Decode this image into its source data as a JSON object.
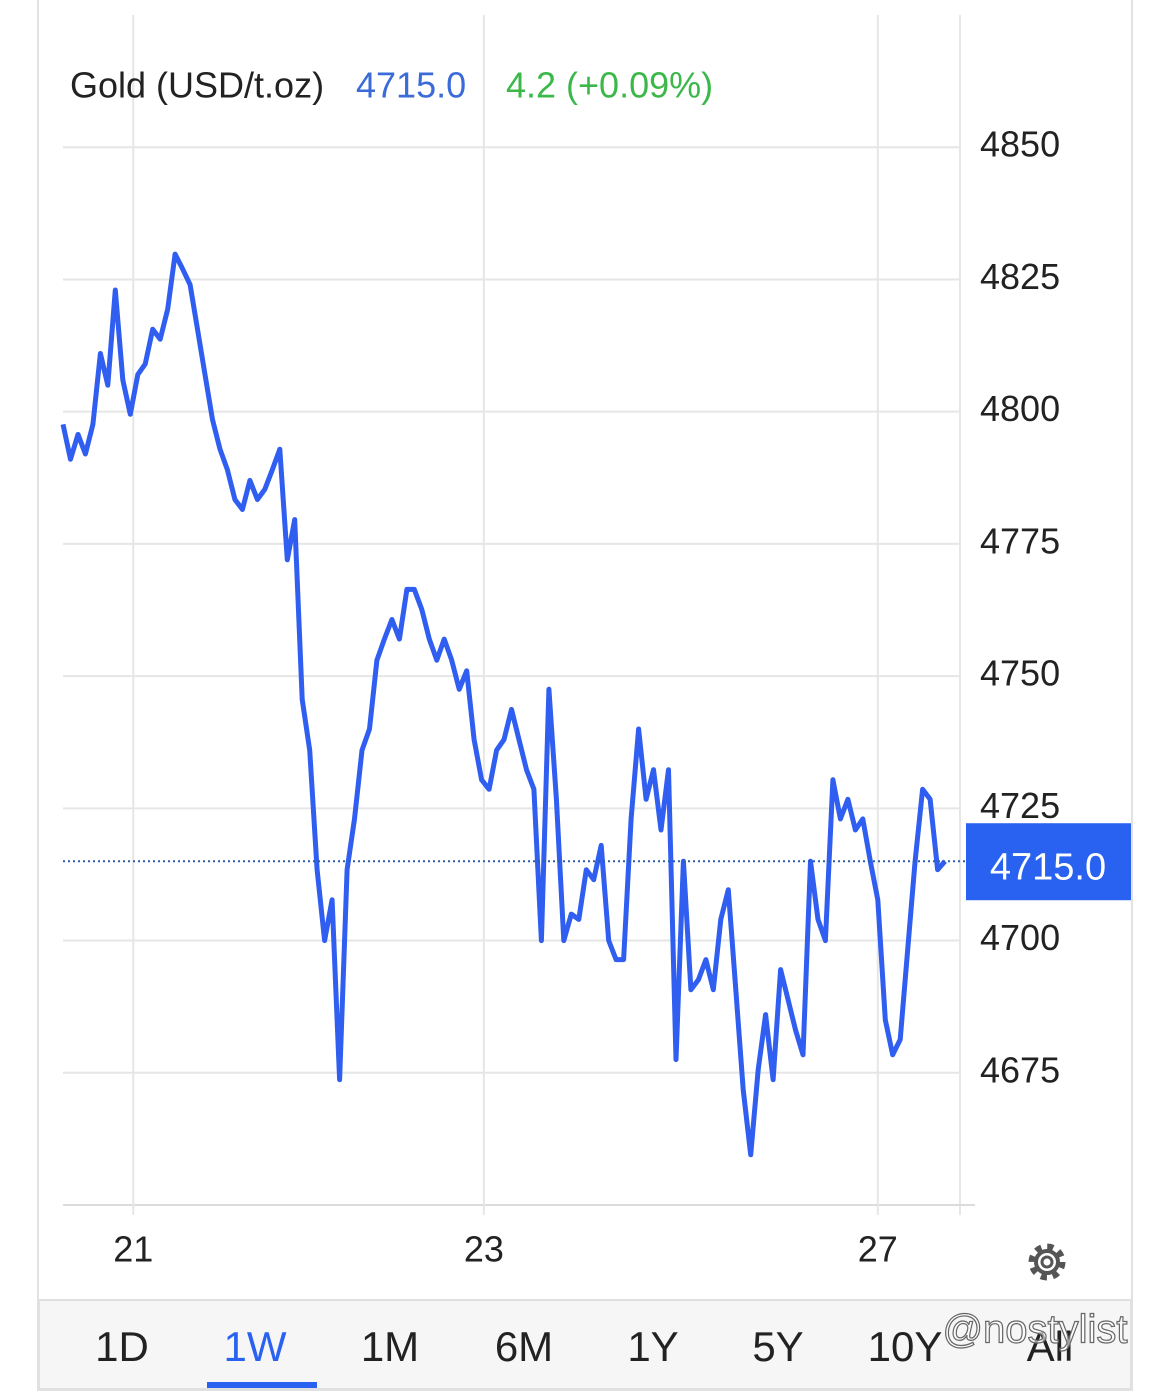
{
  "header": {
    "name": "Gold (USD/t.oz)",
    "price": {
      "value": 4715.0,
      "label": "4715.0"
    },
    "change": "4.2 (+0.09%)"
  },
  "chart_data": {
    "type": "line",
    "x": [
      0,
      1,
      2,
      3,
      4,
      5,
      6,
      7,
      8,
      9,
      10,
      11,
      12,
      13,
      14,
      15,
      16,
      17,
      18,
      19,
      20,
      21,
      22,
      23,
      24,
      25,
      26,
      27,
      28,
      29,
      30,
      31,
      32,
      33,
      34,
      35,
      36,
      37,
      38,
      39,
      40,
      41,
      42,
      43,
      44,
      45,
      46,
      47,
      48,
      49,
      50,
      51,
      52,
      53,
      54,
      55,
      56,
      57,
      58,
      59,
      60,
      61,
      62,
      63,
      64,
      65,
      66,
      67,
      68,
      69,
      70,
      71,
      72,
      73,
      74,
      75,
      76,
      77,
      78,
      79,
      80,
      81,
      82,
      83,
      84,
      85,
      86,
      87,
      88,
      89,
      90,
      91,
      92,
      93,
      94,
      95,
      96,
      97,
      98,
      99,
      100,
      101,
      102,
      103,
      104,
      105,
      106,
      107,
      108,
      109,
      110,
      111,
      112,
      113,
      114,
      115,
      116,
      117,
      118
    ],
    "series": [
      {
        "color": "#2f5ef0",
        "values": [
          4797.6,
          4791,
          4795.7,
          4792,
          4797.6,
          4811,
          4805,
          4823,
          4806,
          4799.5,
          4807,
          4809,
          4815.6,
          4813.7,
          4819.4,
          4829.8,
          4827,
          4824,
          4815.6,
          4807,
          4798.5,
          4792.9,
          4789,
          4783.4,
          4781.5,
          4787,
          4783.4,
          4785.3,
          4789,
          4792.9,
          4772,
          4779.6,
          4745.6,
          4736,
          4713.4,
          4700,
          4707.7,
          4673.7,
          4713.4,
          4723,
          4736,
          4740,
          4753,
          4757,
          4760.7,
          4757,
          4766.4,
          4766.4,
          4762.6,
          4757,
          4753,
          4757,
          4753,
          4747.5,
          4751,
          4738,
          4730.4,
          4728.6,
          4736,
          4738,
          4743.7,
          4738,
          4732.3,
          4728.6,
          4700,
          4747.5,
          4726.7,
          4700,
          4705,
          4704,
          4713.4,
          4711.5,
          4718,
          4700,
          4696.4,
          4696.4,
          4723,
          4740,
          4726.7,
          4732.3,
          4720.9,
          4732.3,
          4677.5,
          4715,
          4690.7,
          4692.6,
          4696.4,
          4690.7,
          4704,
          4709.6,
          4690.7,
          4671.8,
          4659.5,
          4675.6,
          4686,
          4673.7,
          4694.5,
          4688.8,
          4683.1,
          4678.4,
          4715,
          4704,
          4700,
          4730.4,
          4723,
          4726.7,
          4720.9,
          4723,
          4715,
          4707.7,
          4685,
          4678.4,
          4681.3,
          4698.3,
          4715,
          4728.6,
          4726.7,
          4713.4,
          4715
        ]
      }
    ],
    "xlim": [
      0,
      120
    ],
    "xticks": [
      {
        "value": 9.4,
        "label": "21"
      },
      {
        "value": 56.3,
        "label": "23"
      },
      {
        "value": 109,
        "label": "27"
      }
    ],
    "ylim": [
      4650,
      4875
    ],
    "yticks": [
      4675,
      4700,
      4725,
      4750,
      4775,
      4800,
      4825,
      4850
    ],
    "grid": true
  },
  "tabs": {
    "items": [
      "1D",
      "1W",
      "1M",
      "6M",
      "1Y",
      "5Y",
      "10Y",
      "All"
    ],
    "selected": "1W"
  },
  "watermark": "@nostylist"
}
